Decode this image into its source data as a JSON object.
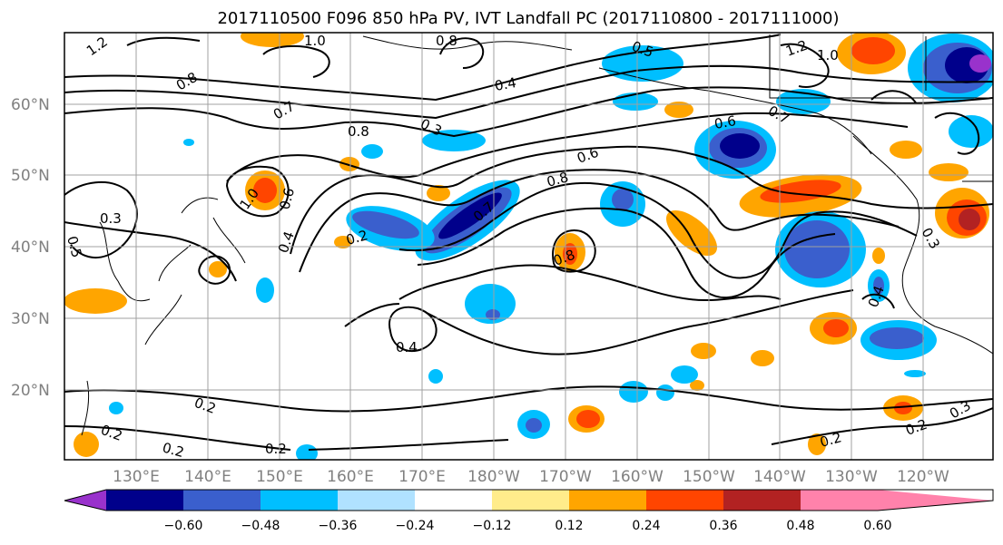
{
  "title": "2017110500 F096 850 hPa PV, IVT Landfall PC (2017110800 - 2017111000)",
  "map": {
    "lat_labels": [
      "60°N",
      "50°N",
      "40°N",
      "30°N",
      "20°N"
    ],
    "lon_labels": [
      "130°E",
      "140°E",
      "150°E",
      "160°E",
      "170°E",
      "180°W",
      "170°W",
      "160°W",
      "150°W",
      "140°W",
      "130°W",
      "120°W"
    ],
    "contour_labels": [
      "1.2",
      "0.8",
      "1.0",
      "0.8",
      "0.5",
      "1.2",
      "1.0",
      "0.4",
      "0.7",
      "0.8",
      "0.6",
      "0.7",
      "0.3",
      "0.6",
      "0.8",
      "1.0",
      "0.6",
      "0.7",
      "0.3",
      "0.5",
      "0.2",
      "0.4",
      "0.3",
      "0.8",
      "0.4",
      "0.2",
      "0.2",
      "0.2",
      "0.2",
      "0.2",
      "0.2",
      "0.4",
      "0.3"
    ]
  },
  "colorbar": {
    "ticks": [
      "−0.60",
      "−0.48",
      "−0.36",
      "−0.24",
      "−0.12",
      "0.12",
      "0.24",
      "0.36",
      "0.48",
      "0.60"
    ],
    "colors": [
      "#9932cc",
      "#00008b",
      "#3a5fcd",
      "#00bfff",
      "#b0e2ff",
      "#ffffff",
      "#ffec8b",
      "#ffa500",
      "#ff4500",
      "#b22222",
      "#ff82ab"
    ]
  }
}
